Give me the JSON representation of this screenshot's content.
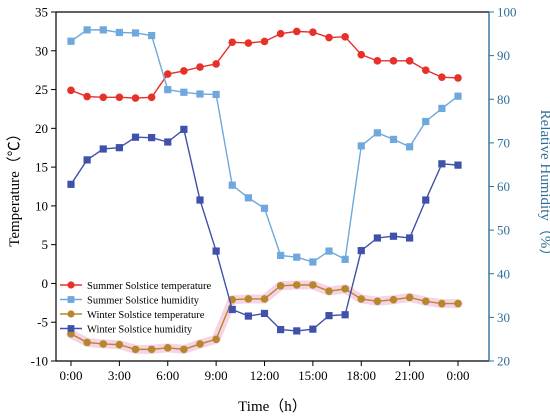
{
  "chart_data": {
    "type": "line",
    "x": [
      "0:00",
      "1:00",
      "2:00",
      "3:00",
      "4:00",
      "5:00",
      "6:00",
      "7:00",
      "8:00",
      "9:00",
      "10:00",
      "11:00",
      "12:00",
      "13:00",
      "14:00",
      "15:00",
      "16:00",
      "17:00",
      "18:00",
      "19:00",
      "20:00",
      "21:00",
      "22:00",
      "23:00",
      "0:00"
    ],
    "xticks": [
      "0:00",
      "3:00",
      "6:00",
      "9:00",
      "12:00",
      "15:00",
      "18:00",
      "21:00",
      "0:00"
    ],
    "xlabel": "Time（h）",
    "ylabel": "Temperature（℃）",
    "y2label": "Relative Humidity（%）",
    "ylim": [
      -10,
      35
    ],
    "y2lim": [
      20,
      100
    ],
    "yticks": [
      -10,
      -5,
      0,
      5,
      10,
      15,
      20,
      25,
      30,
      35
    ],
    "y2ticks": [
      20,
      30,
      40,
      50,
      60,
      70,
      80,
      90,
      100
    ],
    "legend_position": "bottom-left",
    "series": [
      {
        "name": "Summer Solstice temperature",
        "axis": "left",
        "color": "#e8302a",
        "values": [
          24.9,
          24.1,
          24.0,
          24.0,
          23.9,
          24.0,
          27.0,
          27.4,
          27.9,
          28.3,
          31.1,
          31.0,
          31.2,
          32.2,
          32.5,
          32.4,
          31.7,
          31.8,
          29.5,
          28.7,
          28.7,
          28.7,
          27.5,
          26.6,
          26.5
        ]
      },
      {
        "name": "Summer Solstice humidity",
        "axis": "right",
        "color": "#6fa8dc",
        "values": [
          93.3,
          95.9,
          95.9,
          95.3,
          95.2,
          94.6,
          82.2,
          81.6,
          81.2,
          81.1,
          60.3,
          57.4,
          55.0,
          44.2,
          43.8,
          42.7,
          45.2,
          43.3,
          69.3,
          72.3,
          70.8,
          69.1,
          74.9,
          77.9,
          80.7
        ]
      },
      {
        "name": "Winter Solstice temperature",
        "axis": "left",
        "color": "#b8862e",
        "values": [
          -6.5,
          -7.6,
          -7.8,
          -7.9,
          -8.5,
          -8.5,
          -8.3,
          -8.5,
          -7.8,
          -7.2,
          -2.1,
          -2.0,
          -2.0,
          -0.3,
          -0.2,
          -0.2,
          -1.0,
          -0.7,
          -2.0,
          -2.3,
          -2.1,
          -1.8,
          -2.3,
          -2.6,
          -2.6
        ]
      },
      {
        "name": "Winter Solstice humidity",
        "axis": "right",
        "color": "#3f51a8",
        "values": [
          60.5,
          66.1,
          68.6,
          68.9,
          71.3,
          71.2,
          70.2,
          73.1,
          56.9,
          45.2,
          31.8,
          30.3,
          30.9,
          27.2,
          26.9,
          27.3,
          30.4,
          30.6,
          45.3,
          48.2,
          48.6,
          48.2,
          56.9,
          65.2,
          64.9
        ]
      }
    ]
  }
}
